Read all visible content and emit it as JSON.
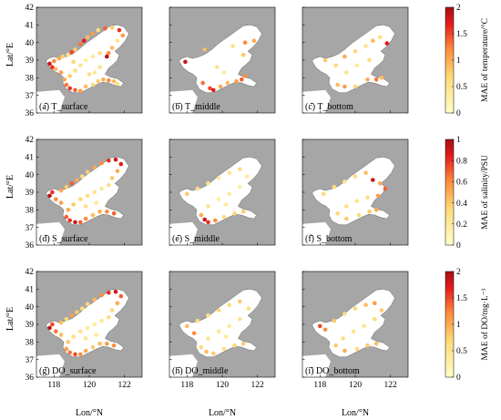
{
  "axis_labels": {
    "ylabel": "Lat/°E",
    "xlabel": "Lon/°N"
  },
  "lat_ticks": [
    "42",
    "41",
    "40",
    "39",
    "38",
    "37",
    "36"
  ],
  "lon_ticks": [
    "118",
    "120",
    "122"
  ],
  "colors": {
    "land": "#a6a6a6",
    "sea": "#ffffff",
    "cmap_low": "#ffffc8",
    "cmap_mid": "#fd8d3c",
    "cmap_high": "#a50f15"
  },
  "colorbars": [
    {
      "label": "MAE of temperature/°C",
      "max": 2,
      "ticks": [
        "0",
        "0.5",
        "1",
        "1.5",
        "2"
      ]
    },
    {
      "label": "MAE of salinity/PSU",
      "max": 1,
      "ticks": [
        "0",
        "0.2",
        "0.4",
        "0.6",
        "0.8",
        "1"
      ]
    },
    {
      "label": "MAE of DO/mg·L⁻¹",
      "max": 2,
      "ticks": [
        "0",
        "0.5",
        "1",
        "1.5",
        "2"
      ]
    }
  ],
  "chart_data": [
    {
      "type": "scatter",
      "panel": "(a) T_surface",
      "row": 0,
      "col": 0,
      "points": [
        [
          117.75,
          38.8,
          1.8
        ],
        [
          117.9,
          38.6,
          1.6
        ],
        [
          118.0,
          38.95,
          1.2
        ],
        [
          118.1,
          38.5,
          0.9
        ],
        [
          118.3,
          39.1,
          1.0
        ],
        [
          118.5,
          39.2,
          0.7
        ],
        [
          118.8,
          39.3,
          0.5
        ],
        [
          119.0,
          39.45,
          1.5
        ],
        [
          119.2,
          39.6,
          0.8
        ],
        [
          119.5,
          39.9,
          1.3
        ],
        [
          119.7,
          40.1,
          1.7
        ],
        [
          119.9,
          40.3,
          0.9
        ],
        [
          120.2,
          40.5,
          1.1
        ],
        [
          120.5,
          40.7,
          0.6
        ],
        [
          120.9,
          40.8,
          1.4
        ],
        [
          121.3,
          40.85,
          0.8
        ],
        [
          121.7,
          40.7,
          1.6
        ],
        [
          121.9,
          40.4,
          1.1
        ],
        [
          121.6,
          40.1,
          0.5
        ],
        [
          121.3,
          39.7,
          0.9
        ],
        [
          121.1,
          39.4,
          1.2
        ],
        [
          121.0,
          39.2,
          1.9
        ],
        [
          120.6,
          39.4,
          0.6
        ],
        [
          120.2,
          39.2,
          0.4
        ],
        [
          119.8,
          39.0,
          0.3
        ],
        [
          119.5,
          38.7,
          0.5
        ],
        [
          119.2,
          38.4,
          0.6
        ],
        [
          118.9,
          38.1,
          0.8
        ],
        [
          118.6,
          37.9,
          1.0
        ],
        [
          118.7,
          37.6,
          1.3
        ],
        [
          118.9,
          37.4,
          1.6
        ],
        [
          119.2,
          37.3,
          1.4
        ],
        [
          119.5,
          37.25,
          1.1
        ],
        [
          119.8,
          37.5,
          0.9
        ],
        [
          120.2,
          37.6,
          0.7
        ],
        [
          120.5,
          37.8,
          0.8
        ],
        [
          120.8,
          37.9,
          1.0
        ],
        [
          121.1,
          37.85,
          1.2
        ],
        [
          121.4,
          37.8,
          0.9
        ],
        [
          121.6,
          37.65,
          0.6
        ],
        [
          120.3,
          38.3,
          0.4
        ],
        [
          120.6,
          38.6,
          0.5
        ],
        [
          120.0,
          38.2,
          0.6
        ],
        [
          119.1,
          38.9,
          0.7
        ],
        [
          118.4,
          38.3,
          1.1
        ]
      ]
    },
    {
      "type": "scatter",
      "panel": "(b) T_middle",
      "row": 0,
      "col": 1,
      "points": [
        [
          117.9,
          38.9,
          1.8
        ],
        [
          119.0,
          39.6,
          0.9
        ],
        [
          120.6,
          39.8,
          0.6
        ],
        [
          121.3,
          40.0,
          1.2
        ],
        [
          121.8,
          40.1,
          1.0
        ],
        [
          121.2,
          39.3,
          0.8
        ],
        [
          118.9,
          37.7,
          1.3
        ],
        [
          119.3,
          37.4,
          1.5
        ],
        [
          119.5,
          37.3,
          1.7
        ],
        [
          119.9,
          37.5,
          1.0
        ],
        [
          120.3,
          37.7,
          0.9
        ],
        [
          120.8,
          37.8,
          1.1
        ],
        [
          121.1,
          37.9,
          1.4
        ],
        [
          121.3,
          38.1,
          1.2
        ],
        [
          120.1,
          38.3,
          0.4
        ],
        [
          119.7,
          38.6,
          0.5
        ]
      ]
    },
    {
      "type": "scatter",
      "panel": "(c) T_bottom",
      "row": 0,
      "col": 2,
      "points": [
        [
          119.4,
          39.2,
          1.0
        ],
        [
          120.0,
          39.5,
          0.7
        ],
        [
          120.6,
          39.8,
          0.5
        ],
        [
          121.0,
          40.1,
          0.9
        ],
        [
          121.4,
          40.3,
          0.6
        ],
        [
          121.8,
          39.95,
          1.7
        ],
        [
          120.8,
          39.0,
          0.6
        ],
        [
          120.1,
          38.7,
          0.4
        ],
        [
          119.5,
          38.3,
          0.5
        ],
        [
          118.9,
          38.7,
          0.7
        ],
        [
          118.3,
          39.0,
          0.8
        ],
        [
          119.0,
          37.6,
          0.9
        ],
        [
          119.4,
          37.5,
          1.1
        ],
        [
          120.0,
          37.5,
          0.7
        ],
        [
          120.7,
          37.9,
          1.0
        ],
        [
          121.2,
          37.9,
          1.3
        ],
        [
          121.5,
          38.0,
          0.9
        ]
      ]
    },
    {
      "type": "scatter",
      "panel": "(d) S_surface",
      "row": 1,
      "col": 0,
      "points": [
        [
          117.75,
          38.8,
          0.95
        ],
        [
          117.9,
          39.0,
          0.8
        ],
        [
          118.1,
          38.6,
          0.6
        ],
        [
          118.4,
          39.1,
          0.5
        ],
        [
          118.7,
          39.3,
          0.4
        ],
        [
          119.0,
          39.5,
          0.7
        ],
        [
          119.3,
          39.7,
          0.5
        ],
        [
          119.6,
          39.9,
          0.3
        ],
        [
          119.9,
          40.15,
          0.4
        ],
        [
          120.3,
          40.4,
          0.5
        ],
        [
          120.7,
          40.65,
          0.6
        ],
        [
          121.1,
          40.8,
          0.8
        ],
        [
          121.5,
          40.85,
          0.9
        ],
        [
          121.8,
          40.6,
          0.85
        ],
        [
          121.6,
          40.2,
          0.5
        ],
        [
          121.3,
          39.8,
          0.4
        ],
        [
          121.1,
          39.4,
          0.3
        ],
        [
          120.7,
          39.2,
          0.2
        ],
        [
          120.3,
          39.0,
          0.25
        ],
        [
          119.9,
          38.8,
          0.3
        ],
        [
          119.5,
          38.6,
          0.35
        ],
        [
          119.1,
          38.3,
          0.4
        ],
        [
          118.8,
          38.0,
          0.5
        ],
        [
          118.7,
          37.6,
          0.7
        ],
        [
          118.9,
          37.4,
          0.8
        ],
        [
          119.2,
          37.3,
          0.9
        ],
        [
          119.5,
          37.3,
          0.7
        ],
        [
          119.8,
          37.5,
          0.6
        ],
        [
          120.2,
          37.7,
          0.45
        ],
        [
          120.6,
          37.9,
          0.5
        ],
        [
          121.0,
          37.9,
          0.6
        ],
        [
          121.4,
          37.8,
          0.7
        ],
        [
          120.4,
          38.4,
          0.2
        ],
        [
          119.8,
          38.2,
          0.3
        ],
        [
          118.4,
          38.4,
          0.55
        ]
      ]
    },
    {
      "type": "scatter",
      "panel": "(e) S_middle",
      "row": 1,
      "col": 1,
      "points": [
        [
          118.0,
          38.9,
          0.4
        ],
        [
          118.6,
          39.2,
          0.3
        ],
        [
          119.2,
          39.5,
          0.25
        ],
        [
          119.8,
          39.8,
          0.2
        ],
        [
          120.4,
          40.1,
          0.25
        ],
        [
          121.0,
          40.3,
          0.3
        ],
        [
          121.4,
          39.9,
          0.2
        ],
        [
          121.0,
          39.3,
          0.15
        ],
        [
          120.4,
          38.9,
          0.2
        ],
        [
          119.8,
          38.6,
          0.15
        ],
        [
          119.2,
          38.2,
          0.25
        ],
        [
          118.8,
          37.7,
          0.5
        ],
        [
          119.0,
          37.45,
          0.9
        ],
        [
          119.2,
          37.3,
          0.8
        ],
        [
          119.6,
          37.4,
          0.6
        ],
        [
          120.1,
          37.6,
          0.3
        ],
        [
          120.7,
          37.8,
          0.35
        ],
        [
          121.2,
          37.9,
          0.4
        ],
        [
          120.2,
          38.3,
          0.2
        ]
      ]
    },
    {
      "type": "scatter",
      "panel": "(f) S_bottom",
      "row": 1,
      "col": 2,
      "points": [
        [
          118.2,
          38.9,
          0.35
        ],
        [
          118.8,
          39.3,
          0.3
        ],
        [
          119.4,
          39.6,
          0.25
        ],
        [
          120.0,
          39.9,
          0.3
        ],
        [
          120.6,
          40.1,
          0.45
        ],
        [
          121.0,
          39.7,
          0.9
        ],
        [
          121.4,
          39.5,
          0.5
        ],
        [
          121.7,
          39.2,
          0.7
        ],
        [
          121.3,
          38.8,
          0.55
        ],
        [
          120.7,
          38.7,
          0.3
        ],
        [
          120.1,
          38.5,
          0.25
        ],
        [
          119.5,
          38.2,
          0.3
        ],
        [
          119.0,
          37.8,
          0.35
        ],
        [
          119.5,
          37.5,
          0.4
        ],
        [
          120.2,
          37.7,
          0.35
        ],
        [
          120.8,
          37.9,
          0.4
        ],
        [
          121.2,
          38.0,
          0.5
        ]
      ]
    },
    {
      "type": "scatter",
      "panel": "(g) DO_surface",
      "row": 2,
      "col": 0,
      "points": [
        [
          117.75,
          38.8,
          1.9
        ],
        [
          117.9,
          39.0,
          1.5
        ],
        [
          118.1,
          38.6,
          1.3
        ],
        [
          118.4,
          39.1,
          0.9
        ],
        [
          118.7,
          39.3,
          0.7
        ],
        [
          119.0,
          39.5,
          1.1
        ],
        [
          119.3,
          39.7,
          0.8
        ],
        [
          119.6,
          39.9,
          0.6
        ],
        [
          119.9,
          40.15,
          0.7
        ],
        [
          120.3,
          40.4,
          0.9
        ],
        [
          120.7,
          40.65,
          1.2
        ],
        [
          121.1,
          40.8,
          1.6
        ],
        [
          121.5,
          40.85,
          1.8
        ],
        [
          121.8,
          40.6,
          1.4
        ],
        [
          121.6,
          40.2,
          1.0
        ],
        [
          121.3,
          39.8,
          0.7
        ],
        [
          121.1,
          39.4,
          0.6
        ],
        [
          120.7,
          39.2,
          0.4
        ],
        [
          120.3,
          39.0,
          0.35
        ],
        [
          119.9,
          38.8,
          0.4
        ],
        [
          119.5,
          38.6,
          0.5
        ],
        [
          119.1,
          38.3,
          0.6
        ],
        [
          118.8,
          38.0,
          0.8
        ],
        [
          118.7,
          37.6,
          1.1
        ],
        [
          118.9,
          37.4,
          1.3
        ],
        [
          119.2,
          37.3,
          1.5
        ],
        [
          119.5,
          37.3,
          1.2
        ],
        [
          119.8,
          37.5,
          1.0
        ],
        [
          120.2,
          37.7,
          0.8
        ],
        [
          120.6,
          37.9,
          0.9
        ],
        [
          121.0,
          37.9,
          1.1
        ],
        [
          121.4,
          37.8,
          1.2
        ],
        [
          120.4,
          38.4,
          0.4
        ],
        [
          119.8,
          38.2,
          0.5
        ],
        [
          118.4,
          38.4,
          0.9
        ]
      ]
    },
    {
      "type": "scatter",
      "panel": "(h) DO_middle",
      "row": 2,
      "col": 1,
      "points": [
        [
          118.0,
          38.9,
          0.9
        ],
        [
          118.6,
          39.2,
          0.6
        ],
        [
          119.2,
          39.5,
          0.5
        ],
        [
          119.8,
          39.8,
          0.7
        ],
        [
          120.4,
          40.1,
          0.6
        ],
        [
          121.0,
          40.3,
          0.8
        ],
        [
          121.5,
          39.9,
          0.6
        ],
        [
          121.0,
          39.3,
          0.5
        ],
        [
          120.4,
          38.9,
          0.4
        ],
        [
          119.8,
          38.6,
          0.45
        ],
        [
          119.2,
          38.2,
          0.5
        ],
        [
          118.8,
          37.7,
          0.7
        ],
        [
          119.1,
          37.45,
          0.9
        ],
        [
          119.5,
          37.35,
          0.8
        ],
        [
          120.1,
          37.6,
          0.6
        ],
        [
          120.7,
          37.8,
          0.7
        ],
        [
          121.2,
          37.9,
          0.8
        ],
        [
          120.2,
          38.3,
          0.4
        ],
        [
          118.4,
          38.5,
          1.2
        ]
      ]
    },
    {
      "type": "scatter",
      "panel": "(i) DO_bottom",
      "row": 2,
      "col": 2,
      "points": [
        [
          118.0,
          38.9,
          1.5
        ],
        [
          118.3,
          38.7,
          1.2
        ],
        [
          118.8,
          39.2,
          0.8
        ],
        [
          119.4,
          39.6,
          0.6
        ],
        [
          120.0,
          39.9,
          0.7
        ],
        [
          120.6,
          40.1,
          0.9
        ],
        [
          121.1,
          40.2,
          1.1
        ],
        [
          121.5,
          39.8,
          0.8
        ],
        [
          121.1,
          39.3,
          0.6
        ],
        [
          120.5,
          38.9,
          0.5
        ],
        [
          119.9,
          38.6,
          0.5
        ],
        [
          119.3,
          38.2,
          0.6
        ],
        [
          118.9,
          37.8,
          0.8
        ],
        [
          119.4,
          37.5,
          1.0
        ],
        [
          120.1,
          37.6,
          0.7
        ],
        [
          120.7,
          37.8,
          0.8
        ],
        [
          121.2,
          37.9,
          0.9
        ]
      ]
    }
  ]
}
